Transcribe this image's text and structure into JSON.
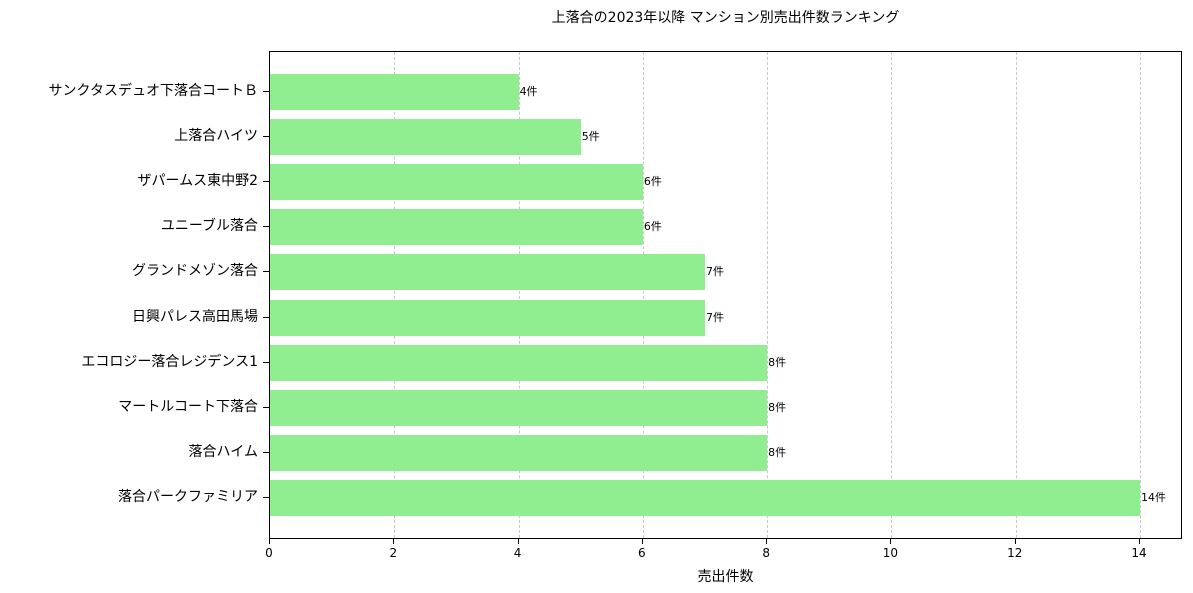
{
  "chart_data": {
    "type": "bar",
    "orientation": "horizontal",
    "title": "上落合の2023年以降 マンション別売出件数ランキング",
    "xlabel": "売出件数",
    "ylabel": "",
    "xlim": [
      0,
      14.7
    ],
    "xticks": [
      0,
      2,
      4,
      6,
      8,
      10,
      12,
      14
    ],
    "grid": {
      "x": true,
      "y": false,
      "style": "dashed"
    },
    "bar_color": "#90ee90",
    "categories": [
      "サンクタスデュオ下落合コートＢ",
      "上落合ハイツ",
      "ザパームス東中野2",
      "ユニーブル落合",
      "グランドメゾン落合",
      "日興パレス高田馬場",
      "エコロジー落合レジデンス1",
      "マートルコート下落合",
      "落合ハイム",
      "落合パークファミリア"
    ],
    "values": [
      4,
      5,
      6,
      6,
      7,
      7,
      8,
      8,
      8,
      14
    ],
    "data_labels": [
      "4件",
      "5件",
      "6件",
      "6件",
      "7件",
      "7件",
      "8件",
      "8件",
      "8件",
      "14件"
    ]
  }
}
